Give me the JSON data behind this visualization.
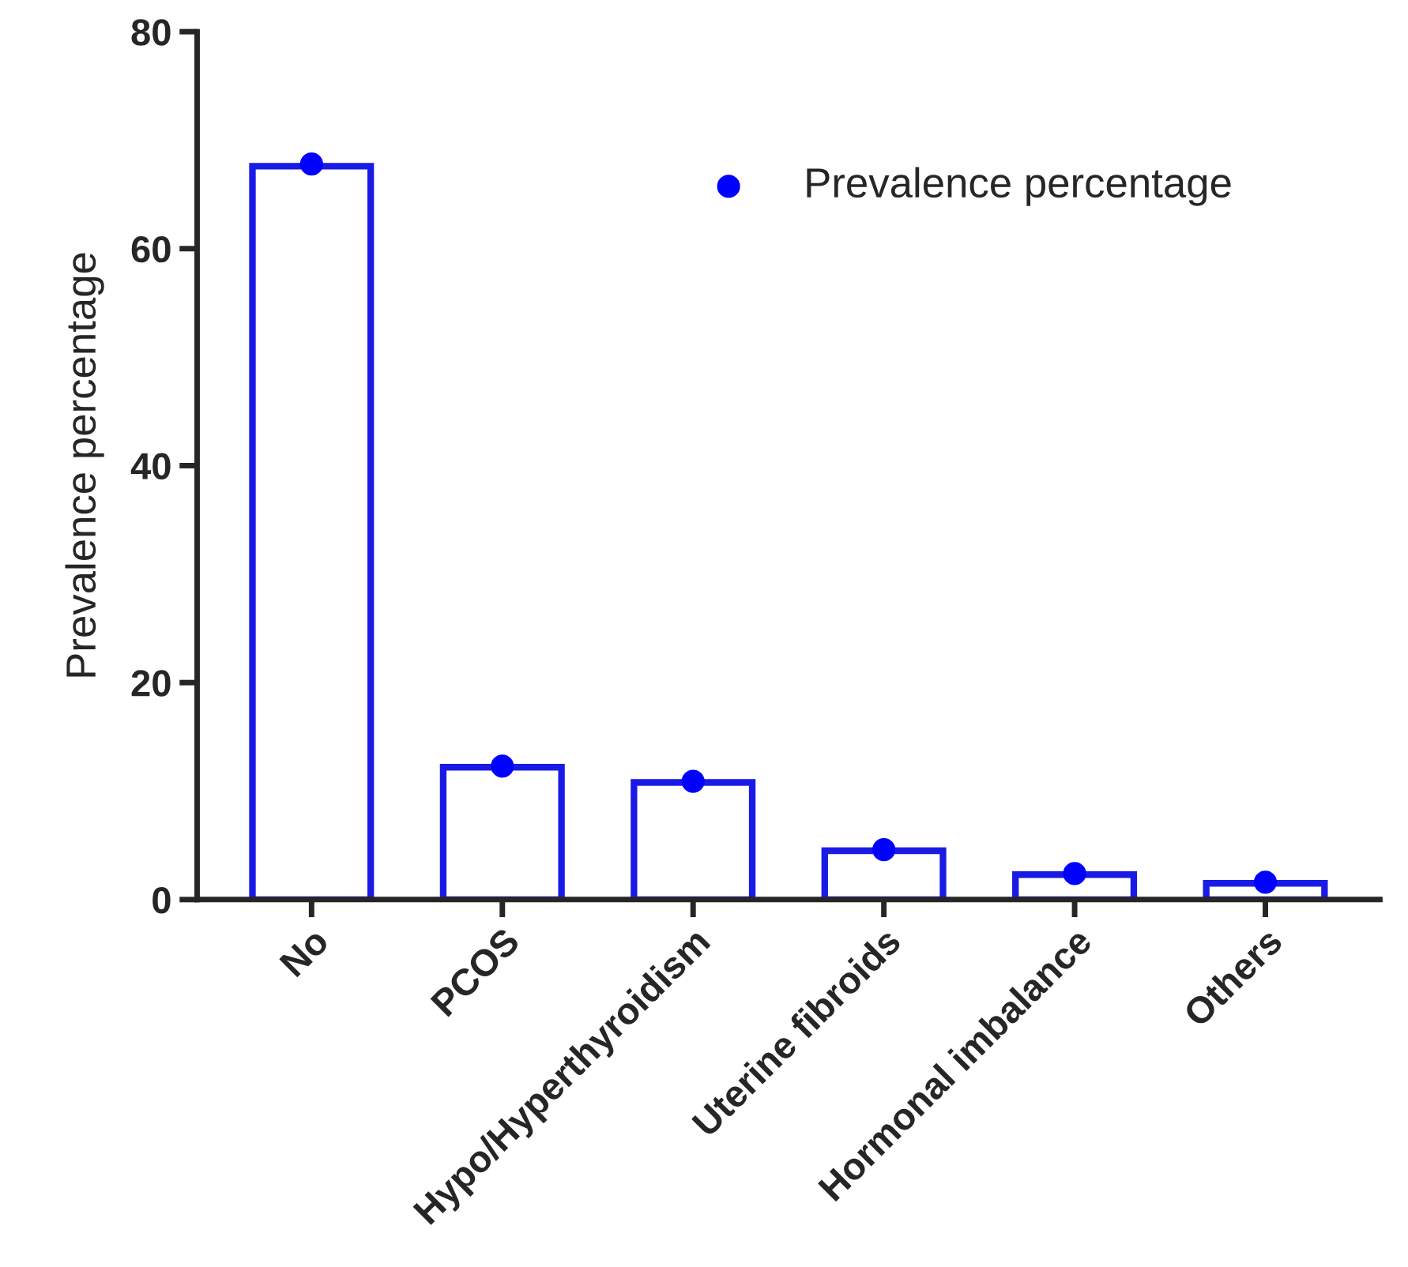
{
  "chart_data": {
    "type": "bar",
    "ylabel": "Prevalence percentage",
    "categories": [
      "No",
      "PCOS",
      "Hypo/Hyperthyroidism",
      "Uterine fibroids",
      "Hormonal imbalance",
      "Others"
    ],
    "series": [
      {
        "color": "#1a1ae6",
        "values": [
          67.6,
          12.2,
          10.8,
          4.5,
          2.3,
          1.5
        ]
      },
      {
        "type": "scatter",
        "name": "Prevalence percentage",
        "color": "#0000ff",
        "x": [
          "No",
          "PCOS",
          "Hypo/Hyperthyroidism",
          "Uterine fibroids",
          "Hormonal imbalance",
          "Others"
        ],
        "values": [
          67.8,
          12.3,
          10.9,
          4.6,
          2.4,
          1.6
        ]
      }
    ],
    "ylim": [
      0,
      80
    ],
    "yticks": [
      0,
      20,
      40,
      60,
      80
    ],
    "marker": "circle",
    "legend": "top right",
    "grid": false
  }
}
